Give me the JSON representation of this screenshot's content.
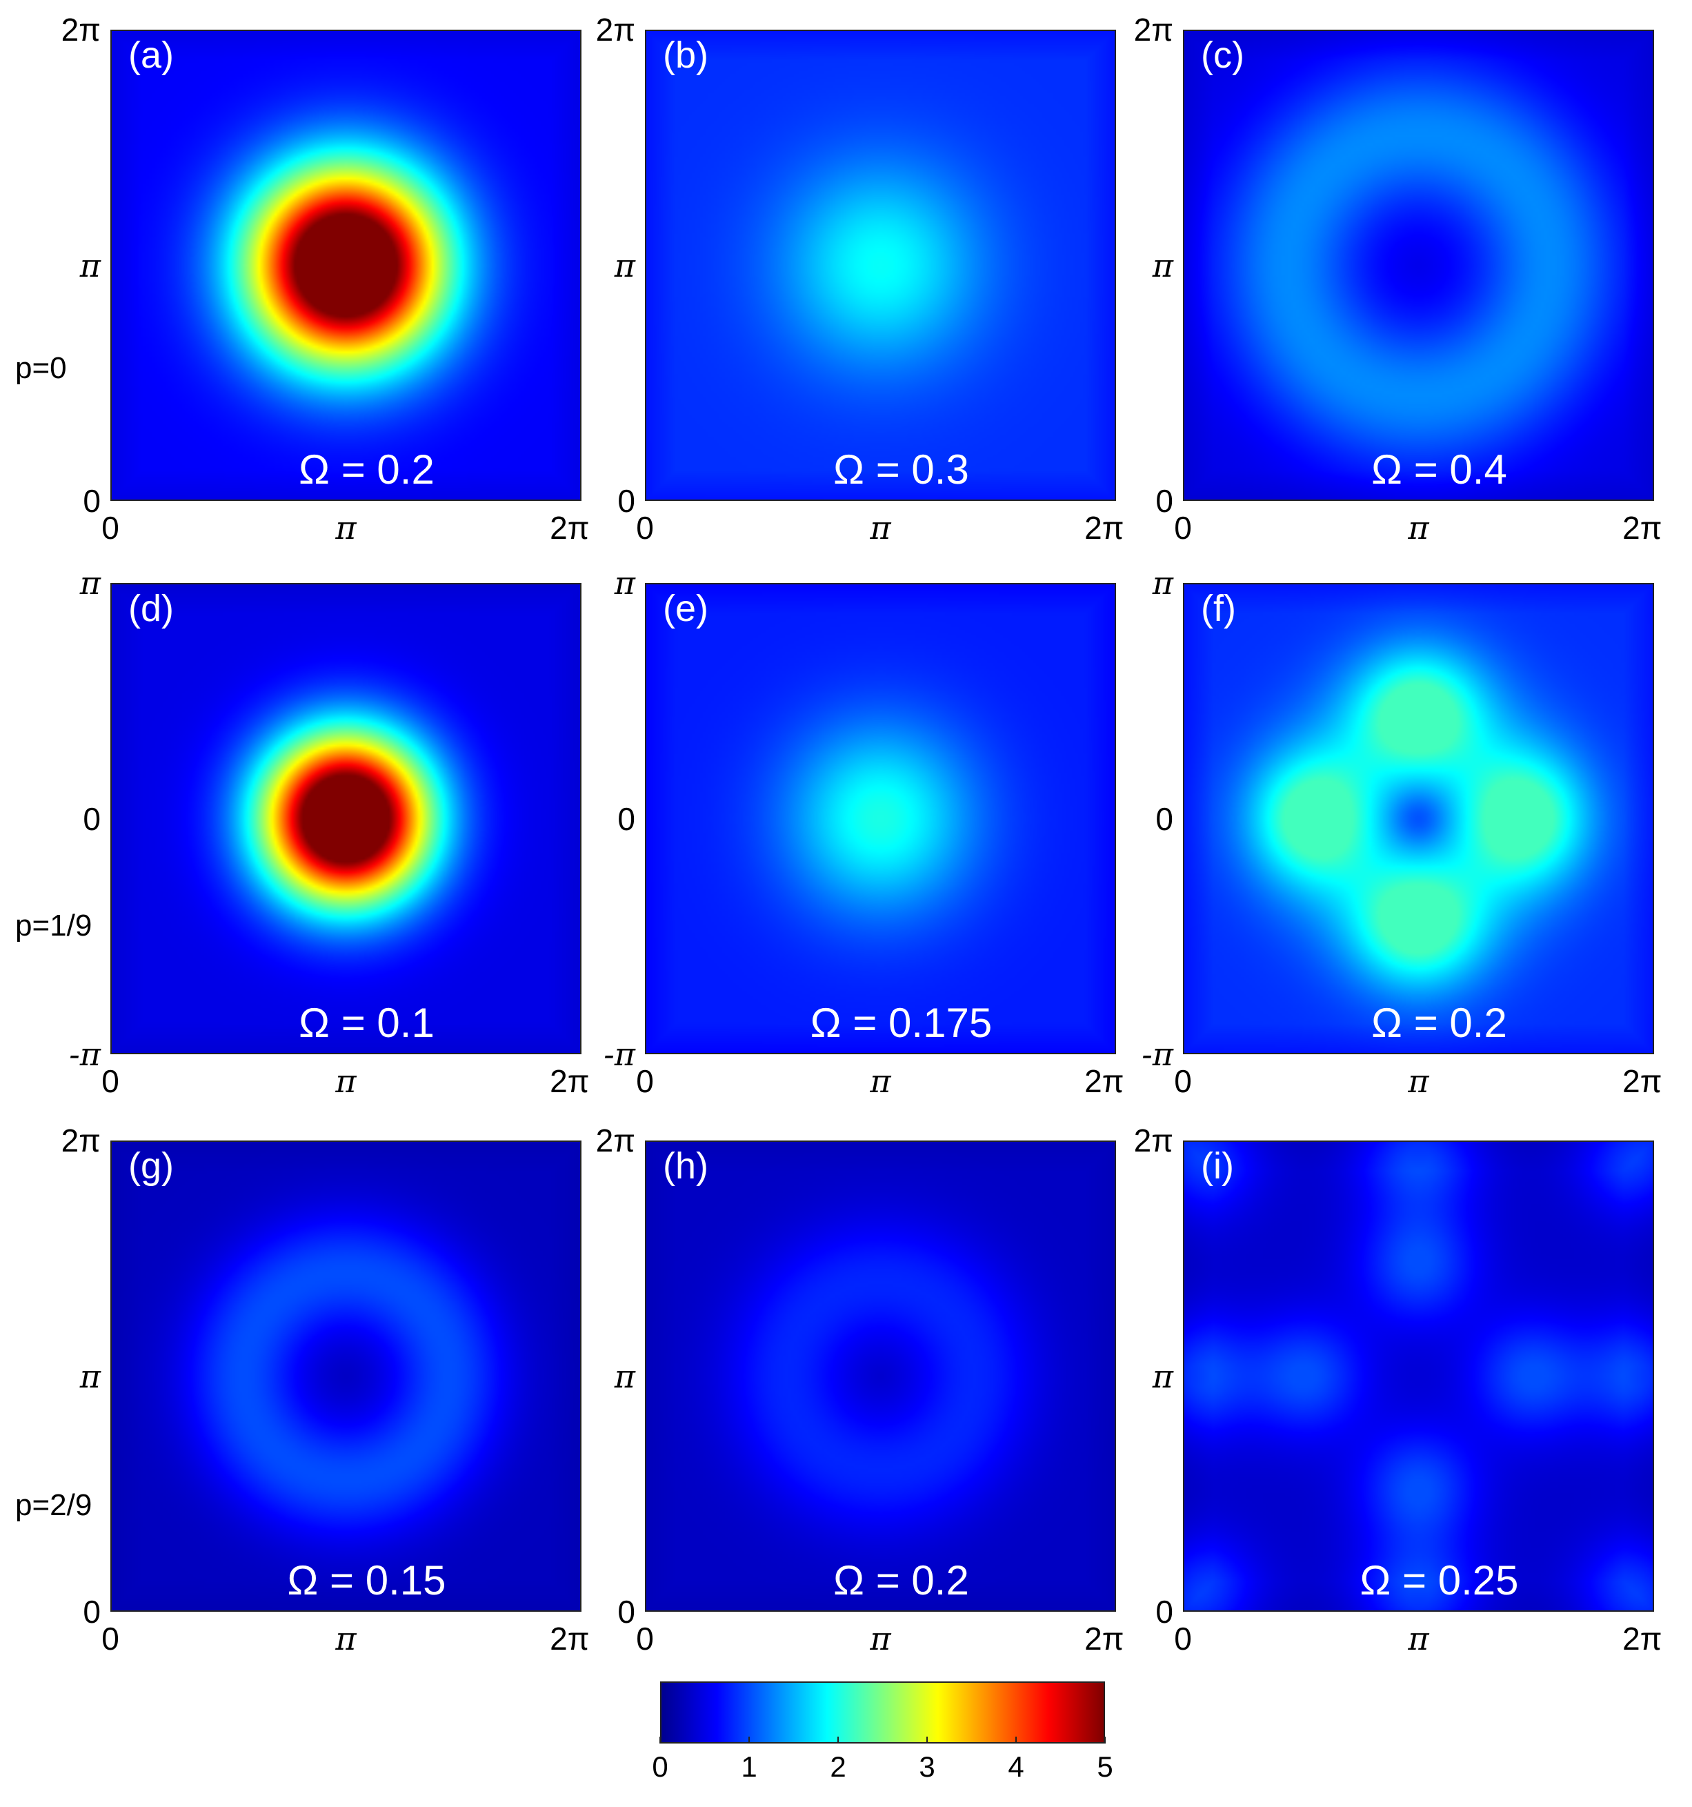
{
  "chart_data": {
    "type": "heatmap",
    "colormap": "jet",
    "colorbar": {
      "min": 0,
      "max": 5,
      "ticks": [
        "0",
        "1",
        "2",
        "3",
        "4",
        "5"
      ]
    },
    "row_labels": [
      "p=0",
      "p=1/9",
      "p=2/9"
    ],
    "panels": [
      {
        "label": "(a)",
        "title": "Ω = 0.2",
        "row": 0,
        "col": 0,
        "xticks": [
          "0",
          "π",
          "2π"
        ],
        "yticks": [
          "0",
          "π",
          "2π"
        ],
        "pattern": "blob",
        "peak": 5.0,
        "ring_radius": 0,
        "spread": 0.3,
        "background": 0.6
      },
      {
        "label": "(b)",
        "title": "Ω = 0.3",
        "row": 0,
        "col": 1,
        "xticks": [
          "0",
          "π",
          "2π"
        ],
        "yticks": [
          "0",
          "π",
          "2π"
        ],
        "pattern": "blob",
        "peak": 1.9,
        "ring_radius": 0,
        "spread": 0.32,
        "background": 0.85
      },
      {
        "label": "(c)",
        "title": "Ω = 0.4",
        "row": 0,
        "col": 2,
        "xticks": [
          "0",
          "π",
          "2π"
        ],
        "yticks": [
          "0",
          "π",
          "2π"
        ],
        "pattern": "ring",
        "peak": 1.3,
        "ring_radius": 0.28,
        "spread": 0.16,
        "background": 0.9
      },
      {
        "label": "(d)",
        "title": "Ω = 0.1",
        "row": 1,
        "col": 0,
        "xticks": [
          "0",
          "π",
          "2π"
        ],
        "yticks": [
          "-π",
          "0",
          "π"
        ],
        "pattern": "blob",
        "peak": 5.0,
        "ring_radius": 0,
        "spread": 0.26,
        "background": 0.5
      },
      {
        "label": "(e)",
        "title": "Ω = 0.175",
        "row": 1,
        "col": 1,
        "xticks": [
          "0",
          "π",
          "2π"
        ],
        "yticks": [
          "-π",
          "0",
          "π"
        ],
        "pattern": "blob",
        "peak": 2.0,
        "ring_radius": 0,
        "spread": 0.3,
        "background": 0.75
      },
      {
        "label": "(f)",
        "title": "Ω = 0.2",
        "row": 1,
        "col": 2,
        "xticks": [
          "0",
          "π",
          "2π"
        ],
        "yticks": [
          "-π",
          "0",
          "π"
        ],
        "pattern": "four",
        "peak": 2.2,
        "ring_radius": 0.22,
        "spread": 0.1,
        "background": 0.85
      },
      {
        "label": "(g)",
        "title": "Ω = 0.15",
        "row": 2,
        "col": 0,
        "xticks": [
          "0",
          "π",
          "2π"
        ],
        "yticks": [
          "0",
          "π",
          "2π"
        ],
        "pattern": "ring",
        "peak": 1.0,
        "ring_radius": 0.22,
        "spread": 0.13,
        "background": 0.55
      },
      {
        "label": "(h)",
        "title": "Ω = 0.2",
        "row": 2,
        "col": 1,
        "xticks": [
          "0",
          "π",
          "2π"
        ],
        "yticks": [
          "0",
          "π",
          "2π"
        ],
        "pattern": "ring",
        "peak": 0.8,
        "ring_radius": 0.2,
        "spread": 0.14,
        "background": 0.6
      },
      {
        "label": "(i)",
        "title": "Ω = 0.25",
        "row": 2,
        "col": 2,
        "xticks": [
          "0",
          "π",
          "2π"
        ],
        "yticks": [
          "0",
          "π",
          "2π"
        ],
        "pattern": "lattice",
        "peak": 1.0,
        "ring_radius": 0.24,
        "spread": 0.09,
        "background": 0.6
      }
    ]
  }
}
